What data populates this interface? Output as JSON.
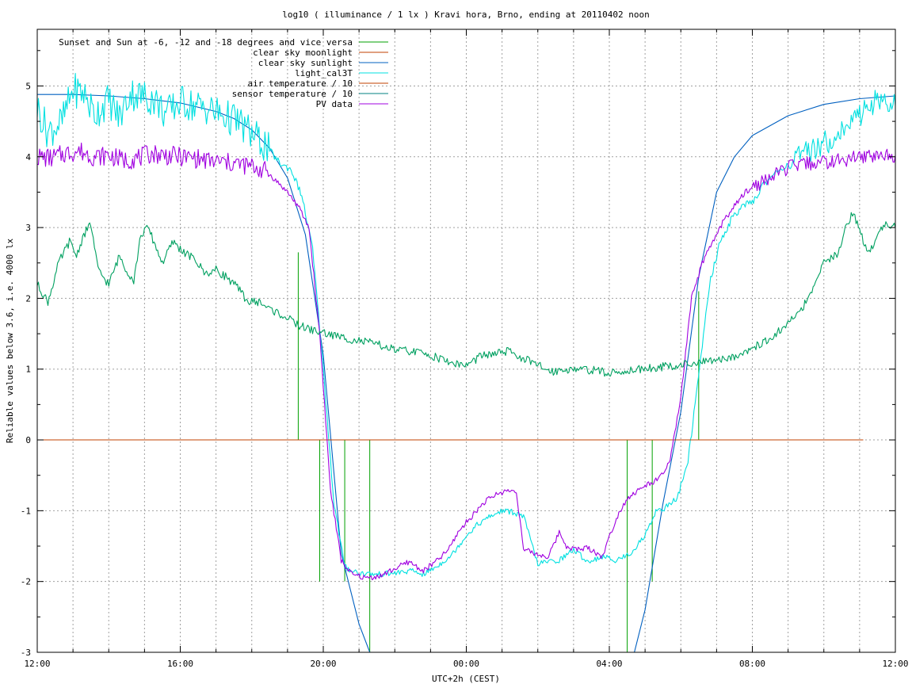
{
  "chart_data": {
    "type": "line",
    "title": "log10 ( illuminance / 1 lx ) Kravi hora, Brno, ending at 20110402 noon",
    "xlabel": "UTC+2h (CEST)",
    "ylabel": "Reliable values below 3.6, i.e. 4000 lx",
    "xlim": [
      0,
      24
    ],
    "ylim": [
      -3,
      5.8
    ],
    "grid": true,
    "legend_position": "top-right",
    "x_unit": "hours after 12:00",
    "x_ticks": [
      {
        "value": 0,
        "label": "12:00"
      },
      {
        "value": 4,
        "label": "16:00"
      },
      {
        "value": 8,
        "label": "20:00"
      },
      {
        "value": 12,
        "label": "00:00"
      },
      {
        "value": 16,
        "label": "04:00"
      },
      {
        "value": 20,
        "label": "08:00"
      },
      {
        "value": 24,
        "label": "12:00"
      }
    ],
    "y_ticks": [
      -3,
      -2,
      -1,
      0,
      1,
      2,
      3,
      4,
      5
    ],
    "series": [
      {
        "name": "Sunset and Sun at -6, -12 and -18 degrees and vice versa",
        "color": "#00a000",
        "style": "vlines",
        "x": [
          7.3,
          7.9,
          8.6,
          9.3,
          16.5,
          17.2,
          17.8,
          18.5
        ],
        "y_top": [
          2.65,
          0.0,
          0.0,
          0.0,
          0.0,
          0.0,
          0.0,
          2.1
        ],
        "y_bottom": [
          0.0,
          -2.0,
          -2.0,
          -3.0,
          -3.0,
          -2.0,
          0.0,
          0.0
        ]
      },
      {
        "name": "clear sky moonlight",
        "color": "#c04000",
        "x": [
          0,
          23.1
        ],
        "y": [
          0,
          0
        ]
      },
      {
        "name": "clear sky sunlight",
        "color": "#0060c0",
        "x": [
          0,
          1,
          2,
          3,
          4,
          5,
          5.5,
          6,
          6.5,
          7,
          7.5,
          8,
          8.5,
          9,
          9.3,
          16.7,
          17,
          17.5,
          18,
          18.5,
          19,
          19.5,
          20,
          21,
          22,
          23,
          24
        ],
        "y": [
          4.88,
          4.88,
          4.86,
          4.82,
          4.76,
          4.64,
          4.54,
          4.38,
          4.12,
          3.7,
          2.9,
          1.2,
          -1.6,
          -2.6,
          -3.0,
          -3.0,
          -2.4,
          -0.9,
          0.4,
          2.3,
          3.5,
          4.0,
          4.3,
          4.58,
          4.74,
          4.82,
          4.86
        ]
      },
      {
        "name": "light_cal3T",
        "color": "#00e0e0",
        "x": [
          0,
          0.3,
          0.7,
          1.0,
          1.3,
          1.6,
          2.0,
          2.3,
          2.6,
          3.0,
          3.3,
          3.6,
          4.0,
          4.4,
          4.8,
          5.2,
          5.6,
          6.0,
          6.4,
          6.8,
          7.1,
          7.4,
          7.7,
          8.0,
          8.3,
          8.6,
          9.0,
          9.5,
          10.0,
          10.5,
          10.8,
          11.2,
          11.6,
          12.0,
          12.3,
          12.6,
          13.0,
          13.3,
          13.6,
          14.0,
          14.3,
          14.6,
          15.0,
          15.4,
          15.8,
          16.2,
          16.6,
          17.0,
          17.3,
          17.6,
          17.9,
          18.2,
          18.5,
          18.8,
          19.1,
          19.4,
          19.7,
          20.0,
          20.3,
          20.6,
          21.0,
          21.4,
          21.8,
          22.2,
          22.6,
          23.0,
          23.3,
          23.6,
          24.0
        ],
        "y": [
          4.7,
          4.35,
          4.5,
          4.95,
          4.9,
          4.6,
          4.8,
          4.55,
          4.9,
          4.85,
          4.8,
          4.6,
          4.78,
          4.72,
          4.68,
          4.58,
          4.5,
          4.32,
          4.15,
          3.9,
          3.82,
          3.45,
          2.7,
          1.0,
          -0.9,
          -1.8,
          -1.88,
          -1.9,
          -1.88,
          -1.85,
          -1.9,
          -1.78,
          -1.62,
          -1.35,
          -1.2,
          -1.1,
          -1.0,
          -1.02,
          -1.08,
          -1.75,
          -1.72,
          -1.7,
          -1.55,
          -1.72,
          -1.65,
          -1.7,
          -1.6,
          -1.35,
          -1.0,
          -0.95,
          -0.82,
          -0.3,
          0.9,
          2.2,
          2.8,
          3.1,
          3.3,
          3.35,
          3.6,
          3.75,
          3.9,
          4.0,
          4.15,
          4.25,
          4.4,
          4.6,
          4.75,
          4.8,
          4.72
        ]
      },
      {
        "name": "air temperature / 10",
        "color": "#c04000",
        "x": [
          0,
          23.1
        ],
        "y": [
          0,
          0
        ]
      },
      {
        "name": "sensor temperature / 10",
        "color": "#008080",
        "x": [],
        "y": []
      },
      {
        "name": "PV data",
        "color": "#a000e0",
        "x": [
          0,
          0.4,
          0.8,
          1.2,
          1.6,
          2.0,
          2.4,
          2.8,
          3.2,
          3.6,
          4.0,
          4.4,
          4.8,
          5.2,
          5.6,
          6.0,
          6.4,
          6.7,
          7.0,
          7.3,
          7.6,
          7.9,
          8.2,
          8.5,
          8.8,
          9.2,
          9.6,
          10.0,
          10.4,
          10.8,
          11.2,
          11.5,
          11.8,
          12.2,
          12.5,
          12.8,
          13.1,
          13.4,
          13.6,
          14.0,
          14.3,
          14.6,
          14.8,
          15.1,
          15.4,
          15.8,
          16.2,
          16.5,
          16.8,
          17.1,
          17.4,
          17.7,
          18.0,
          18.3,
          18.6,
          18.9,
          19.2,
          19.5,
          19.8,
          20.1,
          20.5,
          21.0,
          21.5,
          22.0,
          22.5,
          23.0,
          23.5,
          24.0
        ],
        "y": [
          4.0,
          3.98,
          4.05,
          4.08,
          4.0,
          4.02,
          3.95,
          3.98,
          4.05,
          4.02,
          4.0,
          3.98,
          3.94,
          3.92,
          3.9,
          3.86,
          3.8,
          3.65,
          3.5,
          3.3,
          3.0,
          1.5,
          -0.7,
          -1.7,
          -1.9,
          -1.95,
          -1.92,
          -1.82,
          -1.72,
          -1.85,
          -1.7,
          -1.55,
          -1.28,
          -1.05,
          -0.88,
          -0.78,
          -0.72,
          -0.72,
          -1.55,
          -1.62,
          -1.65,
          -1.3,
          -1.5,
          -1.55,
          -1.52,
          -1.65,
          -1.1,
          -0.82,
          -0.72,
          -0.62,
          -0.55,
          -0.3,
          0.6,
          2.0,
          2.5,
          2.8,
          3.1,
          3.3,
          3.5,
          3.6,
          3.7,
          3.85,
          3.9,
          3.92,
          3.95,
          4.0,
          4.02,
          4.02
        ]
      },
      {
        "name": "",
        "color": "#00a060",
        "x": [
          0,
          0.3,
          0.6,
          0.9,
          1.1,
          1.3,
          1.5,
          1.7,
          2.0,
          2.3,
          2.5,
          2.7,
          2.9,
          3.1,
          3.3,
          3.5,
          3.8,
          4.1,
          4.4,
          4.7,
          5.0,
          5.3,
          5.6,
          5.9,
          6.2,
          6.5,
          6.9,
          7.3,
          7.7,
          8.1,
          8.5,
          9.0,
          9.5,
          10.0,
          10.5,
          11.0,
          11.5,
          12.0,
          12.4,
          12.8,
          13.2,
          13.6,
          14.0,
          14.4,
          14.8,
          15.2,
          15.6,
          16.0,
          16.4,
          16.8,
          17.2,
          17.6,
          18.0,
          18.4,
          18.8,
          19.2,
          19.6,
          20.0,
          20.4,
          20.8,
          21.2,
          21.6,
          22.0,
          22.4,
          22.6,
          22.8,
          23.0,
          23.2,
          23.4,
          23.6,
          23.8,
          24.0
        ],
        "y": [
          2.2,
          1.95,
          2.5,
          2.8,
          2.6,
          2.9,
          3.05,
          2.4,
          2.2,
          2.6,
          2.4,
          2.25,
          2.9,
          3.0,
          2.75,
          2.5,
          2.8,
          2.65,
          2.55,
          2.35,
          2.4,
          2.3,
          2.15,
          1.95,
          1.95,
          1.85,
          1.75,
          1.62,
          1.55,
          1.5,
          1.45,
          1.4,
          1.35,
          1.27,
          1.25,
          1.2,
          1.1,
          1.05,
          1.18,
          1.22,
          1.25,
          1.15,
          1.05,
          0.97,
          1.0,
          1.0,
          0.98,
          0.94,
          0.97,
          1.0,
          1.02,
          1.04,
          1.06,
          1.09,
          1.1,
          1.15,
          1.2,
          1.3,
          1.4,
          1.55,
          1.75,
          2.0,
          2.5,
          2.65,
          3.0,
          3.2,
          3.0,
          2.65,
          2.75,
          3.0,
          3.05,
          3.0
        ]
      }
    ]
  }
}
